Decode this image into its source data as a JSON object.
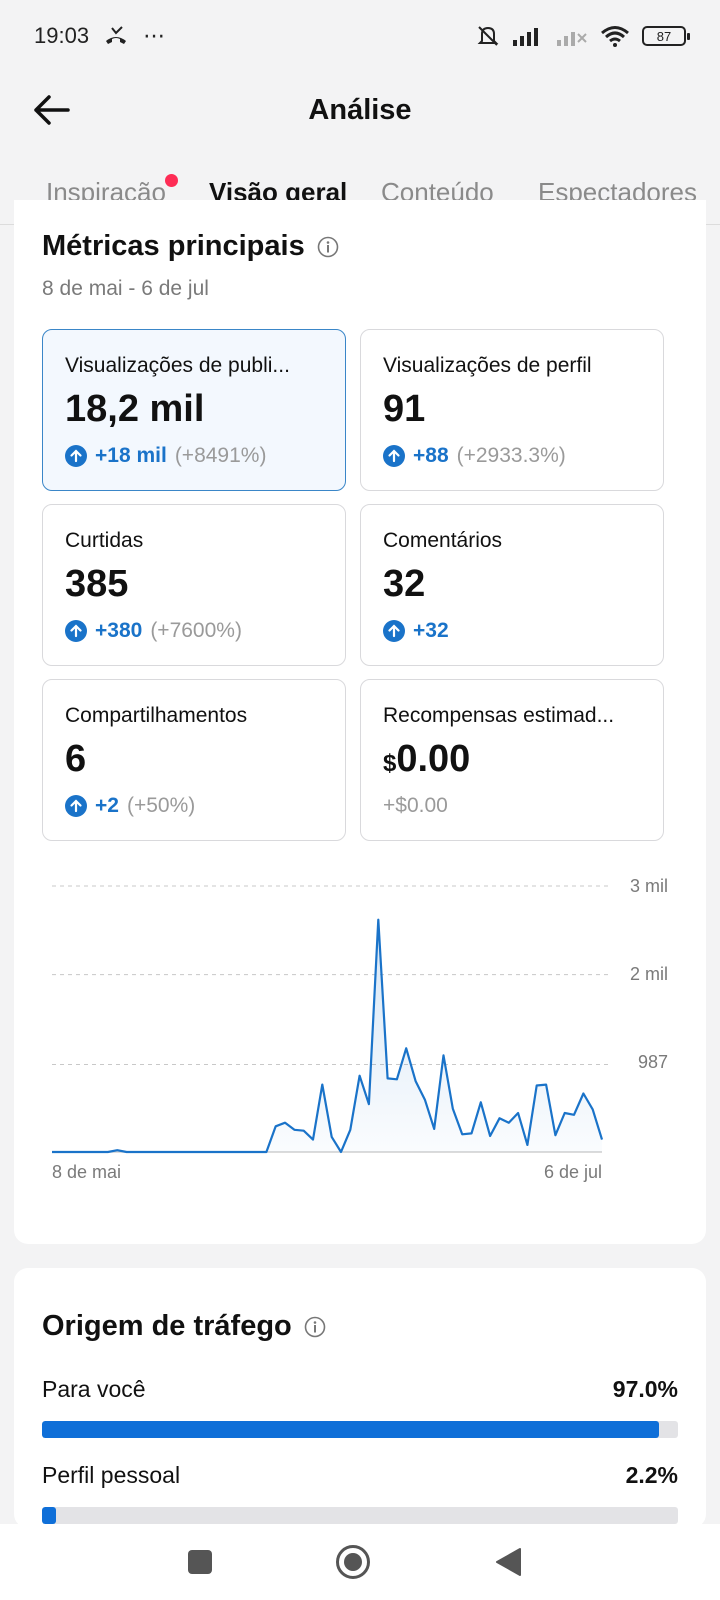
{
  "status_bar": {
    "time": "19:03",
    "extra": "⋯",
    "battery": "87"
  },
  "header": {
    "title": "Análise"
  },
  "tabs": [
    {
      "label": "Inspiração",
      "has_dot": true
    },
    {
      "label": "Visão geral",
      "active": true
    },
    {
      "label": "Conteúdo"
    },
    {
      "label": "Espectadores"
    }
  ],
  "metrics": {
    "title": "Métricas principais",
    "date_range": "8 de mai - 6 de jul",
    "items": [
      {
        "label": "Visualizações de publi...",
        "value": "18,2 mil",
        "change": "+18 mil",
        "pct": "(+8491%)"
      },
      {
        "label": "Visualizações de perfil",
        "value": "91",
        "change": "+88",
        "pct": "(+2933.3%)"
      },
      {
        "label": "Curtidas",
        "value": "385",
        "change": "+380",
        "pct": "(+7600%)"
      },
      {
        "label": "Comentários",
        "value": "32",
        "change": "+32",
        "pct": ""
      },
      {
        "label": "Compartilhamentos",
        "value": "6",
        "change": "+2",
        "pct": "(+50%)"
      },
      {
        "label": "Recompensas estimad...",
        "value_currency": "$",
        "value": "0.00",
        "change_plain": "+$0.00"
      }
    ]
  },
  "chart_data": {
    "type": "area",
    "title": "",
    "x_labels": [
      "8 de mai",
      "6 de jul"
    ],
    "y_ticks": [
      "3 mil",
      "2 mil",
      "987"
    ],
    "ylim": [
      0,
      3000
    ],
    "color": "#1a73c9",
    "values": [
      0,
      0,
      0,
      0,
      0,
      0,
      0,
      20,
      0,
      0,
      0,
      0,
      0,
      0,
      0,
      0,
      0,
      0,
      0,
      0,
      0,
      0,
      0,
      0,
      290,
      330,
      250,
      240,
      140,
      760,
      170,
      0,
      250,
      860,
      540,
      2620,
      830,
      820,
      1170,
      800,
      590,
      260,
      1090,
      490,
      200,
      210,
      560,
      180,
      380,
      330,
      440,
      80,
      750,
      760,
      190,
      440,
      420,
      660,
      480,
      140
    ]
  },
  "traffic": {
    "title": "Origem de tráfego",
    "items": [
      {
        "name": "Para você",
        "pct": "97.0%",
        "value": 0.97
      },
      {
        "name": "Perfil pessoal",
        "pct": "2.2%",
        "value": 0.022
      }
    ]
  },
  "colors": {
    "accent": "#1a73c9",
    "bar": "#0f6fd8",
    "notification_dot": "#fe2c55"
  }
}
